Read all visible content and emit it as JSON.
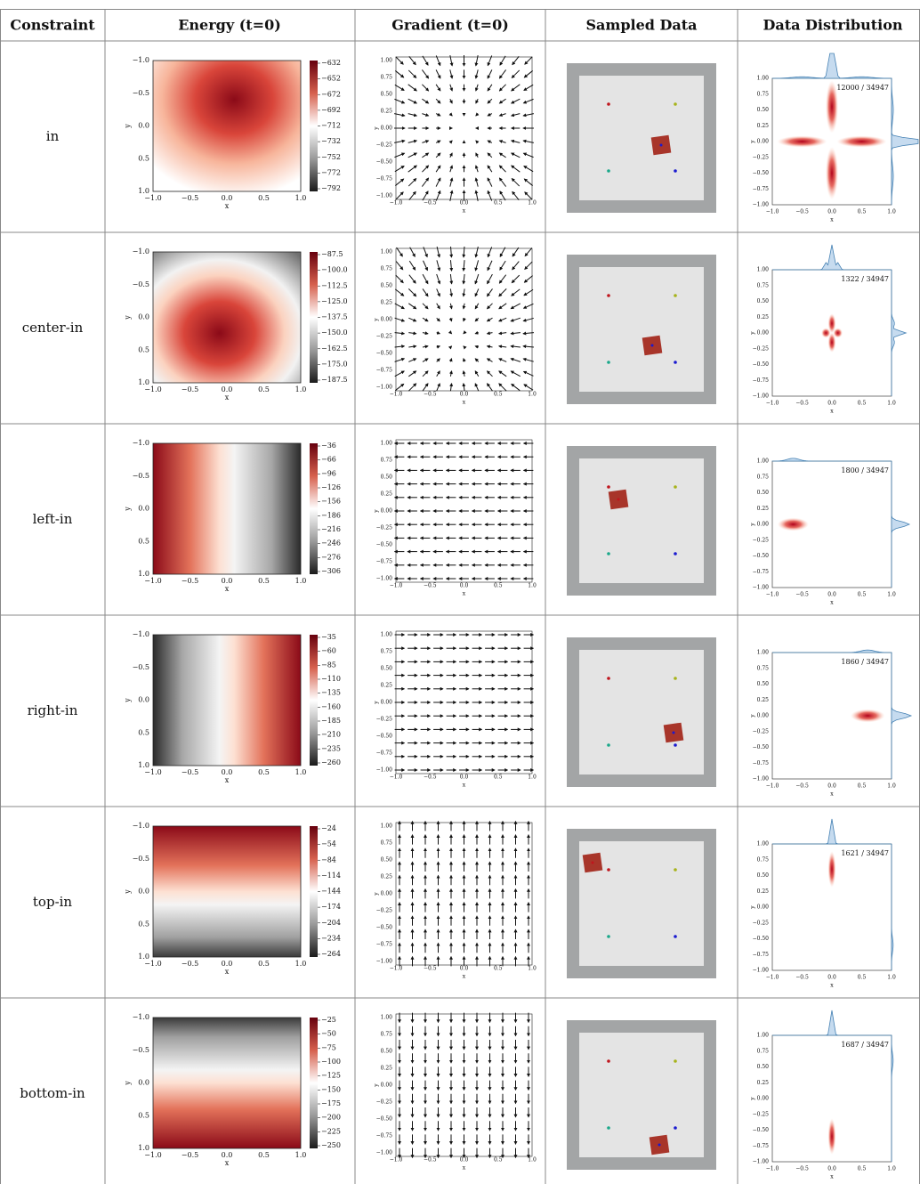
{
  "header": [
    "Constraint",
    "Energy (t=0)",
    "Gradient (t=0)",
    "Sampled Data",
    "Data Distribution"
  ],
  "axes": {
    "ticks5": [
      "−1.0",
      "−0.5",
      "0.0",
      "0.5",
      "1.0"
    ],
    "ticks9": [
      "1.00",
      "0.75",
      "0.50",
      "0.25",
      "0.00",
      "−0.25",
      "−0.50",
      "−0.75",
      "−1.00"
    ],
    "x_label": "x",
    "y_label": "y"
  },
  "rows": [
    {
      "constraint": "in",
      "colorbar": [
        "−632",
        "−652",
        "−672",
        "−692",
        "−712",
        "−732",
        "−752",
        "−772",
        "−792"
      ],
      "count": "12000 / 34947"
    },
    {
      "constraint": "center-in",
      "colorbar": [
        "−87.5",
        "−100.0",
        "−112.5",
        "−125.0",
        "−137.5",
        "−150.0",
        "−162.5",
        "−175.0",
        "−187.5"
      ],
      "count": "1322 / 34947"
    },
    {
      "constraint": "left-in",
      "colorbar": [
        "−36",
        "−66",
        "−96",
        "−126",
        "−156",
        "−186",
        "−216",
        "−246",
        "−276",
        "−306"
      ],
      "count": "1800 / 34947"
    },
    {
      "constraint": "right-in",
      "colorbar": [
        "−35",
        "−60",
        "−85",
        "−110",
        "−135",
        "−160",
        "−185",
        "−210",
        "−235",
        "−260"
      ],
      "count": "1860 / 34947"
    },
    {
      "constraint": "top-in",
      "colorbar": [
        "−24",
        "−54",
        "−84",
        "−114",
        "−144",
        "−174",
        "−204",
        "−234",
        "−264"
      ],
      "count": "1621 / 34947"
    },
    {
      "constraint": "bottom-in",
      "colorbar": [
        "−25",
        "−50",
        "−75",
        "−100",
        "−125",
        "−150",
        "−175",
        "−200",
        "−225",
        "−250"
      ],
      "count": "1687 / 34947"
    }
  ]
}
